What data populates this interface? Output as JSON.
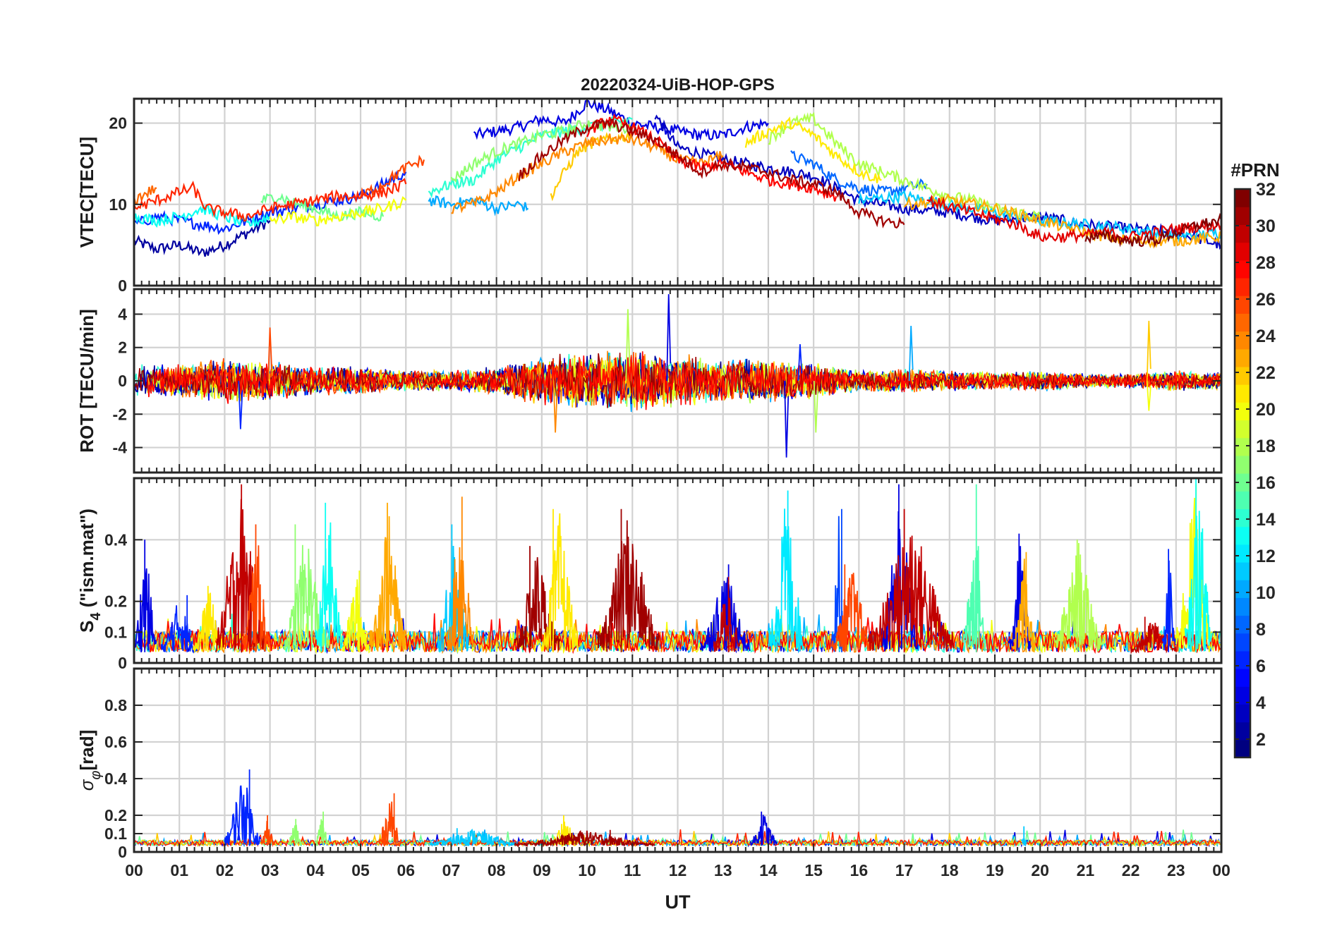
{
  "chart_data": [
    {
      "id": "vtec",
      "type": "line",
      "title": "20220324-UiB-HOP-GPS",
      "ylabel": "VTEC[TECU]",
      "ylim": [
        0,
        23
      ],
      "yticks": [
        0,
        10,
        20
      ],
      "xlim": [
        0,
        24
      ],
      "grid": true,
      "series": [
        {
          "prn": 2,
          "x": [
            0.0,
            0.5,
            1.0,
            1.5,
            2.0,
            2.5,
            3.0
          ],
          "y": [
            5.5,
            4.5,
            5.0,
            4.0,
            5.0,
            6.5,
            8.0
          ]
        },
        {
          "prn": 4,
          "x": [
            7.5,
            8.0,
            8.5,
            9.0,
            9.5,
            10.0,
            10.5,
            11.0,
            11.5,
            12.0,
            12.5,
            13.0,
            13.5,
            14.0
          ],
          "y": [
            18.5,
            19.0,
            19.5,
            20.5,
            20.0,
            22.5,
            21.5,
            20.0,
            19.5,
            19.0,
            18.5,
            18.5,
            19.5,
            20.0
          ]
        },
        {
          "prn": 3,
          "x": [
            11.5,
            12.0,
            13.0,
            14.0,
            15.0,
            16.0,
            17.0,
            18.0,
            19.0,
            20.0,
            21.0,
            22.0,
            23.0,
            24.0
          ],
          "y": [
            21.0,
            17.0,
            15.5,
            14.5,
            13.5,
            10.5,
            9.5,
            9.0,
            8.0,
            8.5,
            7.5,
            7.0,
            6.5,
            5.0
          ]
        },
        {
          "prn": 6,
          "x": [
            0.0,
            0.5,
            1.0,
            1.5,
            2.0,
            2.5,
            3.0,
            3.5,
            4.0,
            4.5,
            5.0,
            5.5,
            6.0
          ],
          "y": [
            7.5,
            8.5,
            8.0,
            7.5,
            7.0,
            8.0,
            9.0,
            9.5,
            10.0,
            10.5,
            11.0,
            12.5,
            14.0
          ]
        },
        {
          "prn": 8,
          "x": [
            14.5,
            15.0,
            15.5,
            16.0,
            16.5,
            17.0,
            17.5
          ],
          "y": [
            16.0,
            15.0,
            13.0,
            12.0,
            11.5,
            12.0,
            12.5
          ]
        },
        {
          "prn": 10,
          "x": [
            6.5,
            7.0,
            7.5,
            8.0,
            8.5,
            8.7
          ],
          "y": [
            10.5,
            10.0,
            10.5,
            9.5,
            10.0,
            9.5
          ]
        },
        {
          "prn": 11,
          "x": [
            16.0,
            17.0,
            18.0,
            19.0,
            20.0,
            21.0,
            22.0,
            23.0,
            24.0
          ],
          "y": [
            10.5,
            11.0,
            10.0,
            9.0,
            8.0,
            7.5,
            7.0,
            6.0,
            6.5
          ]
        },
        {
          "prn": 13,
          "x": [
            0.0,
            0.5,
            1.0,
            1.5,
            2.0,
            2.5,
            3.0
          ],
          "y": [
            8.5,
            8.0,
            8.5,
            9.5,
            8.5,
            7.5,
            8.5
          ]
        },
        {
          "prn": 14,
          "x": [
            6.5,
            7.0,
            7.5,
            8.0,
            8.5,
            9.0,
            9.5,
            10.0,
            10.5,
            11.0
          ],
          "y": [
            11.5,
            12.5,
            13.0,
            15.5,
            17.0,
            18.5,
            19.0,
            19.5,
            20.0,
            20.5
          ]
        },
        {
          "prn": 16,
          "x": [
            2.8,
            3.2,
            3.6,
            4.0,
            4.5,
            5.0,
            5.5
          ],
          "y": [
            10.5,
            11.0,
            10.0,
            9.5,
            8.5,
            9.0,
            8.5
          ]
        },
        {
          "prn": 17,
          "x": [
            7.0,
            7.5,
            8.0,
            8.5,
            9.0,
            9.5,
            10.0,
            10.5,
            11.0
          ],
          "y": [
            13.0,
            15.0,
            16.5,
            17.5,
            18.5,
            19.0,
            20.0,
            19.5,
            19.5
          ]
        },
        {
          "prn": 18,
          "x": [
            14.0,
            14.5,
            15.0,
            15.5,
            16.0,
            16.5,
            17.0,
            17.5,
            18.0,
            18.5,
            19.0,
            19.5,
            20.0
          ],
          "y": [
            18.0,
            20.0,
            20.5,
            17.5,
            15.0,
            14.0,
            13.0,
            12.0,
            11.0,
            10.5,
            9.5,
            9.0,
            8.5
          ]
        },
        {
          "prn": 20,
          "x": [
            3.0,
            3.5,
            4.0,
            4.5,
            5.0,
            5.5,
            6.0
          ],
          "y": [
            8.0,
            8.5,
            8.0,
            8.5,
            9.0,
            9.5,
            10.5
          ]
        },
        {
          "prn": 21,
          "x": [
            13.5,
            14.0,
            14.5,
            15.0,
            15.5,
            16.0,
            16.5
          ],
          "y": [
            17.5,
            19.0,
            20.0,
            18.5,
            16.0,
            14.0,
            13.0
          ]
        },
        {
          "prn": 22,
          "x": [
            9.2,
            9.5,
            9.8,
            10.1,
            10.5,
            11.0
          ],
          "y": [
            11.0,
            14.0,
            16.5,
            17.5,
            18.0,
            18.5
          ]
        },
        {
          "prn": 23,
          "x": [
            17.0,
            18.0,
            19.0,
            20.0,
            21.0,
            22.0,
            23.0,
            24.0
          ],
          "y": [
            10.0,
            10.5,
            9.5,
            8.0,
            6.5,
            5.5,
            5.5,
            6.0
          ]
        },
        {
          "prn": 24,
          "x": [
            7.0,
            7.5,
            8.0,
            8.5,
            9.0,
            9.5,
            10.0,
            10.5,
            11.0,
            11.5,
            12.0,
            12.5,
            13.0
          ],
          "y": [
            9.5,
            10.0,
            11.5,
            13.5,
            15.0,
            16.5,
            17.5,
            18.0,
            18.0,
            17.0,
            15.5,
            15.0,
            16.0
          ]
        },
        {
          "prn": 25,
          "x": [
            0.0,
            0.3,
            0.5
          ],
          "y": [
            10.5,
            11.5,
            12.0
          ]
        },
        {
          "prn": 26,
          "x": [
            5.0,
            5.5,
            6.0,
            6.4
          ],
          "y": [
            11.0,
            12.5,
            14.5,
            15.5
          ]
        },
        {
          "prn": 27,
          "x": [
            0.0,
            0.5,
            1.0,
            1.3,
            1.6,
            2.0,
            2.5,
            3.0,
            3.5,
            4.0,
            4.5,
            5.0,
            5.5,
            6.0
          ],
          "y": [
            9.5,
            10.5,
            11.5,
            12.0,
            9.5,
            9.0,
            8.5,
            9.5,
            10.0,
            10.5,
            11.0,
            11.0,
            11.5,
            12.5
          ]
        },
        {
          "prn": 28,
          "x": [
            10.0,
            10.5,
            11.0,
            11.5,
            12.0,
            12.5,
            13.0,
            13.5,
            14.0,
            14.5,
            15.0,
            15.5
          ],
          "y": [
            19.0,
            20.5,
            19.5,
            18.0,
            15.5,
            14.5,
            15.0,
            14.0,
            13.0,
            12.5,
            12.0,
            11.0
          ]
        },
        {
          "prn": 29,
          "x": [
            17.5,
            18.5,
            19.5,
            20.0,
            20.5,
            21.5,
            22.0,
            23.0,
            24.0
          ],
          "y": [
            10.5,
            9.0,
            7.5,
            6.0,
            6.0,
            6.5,
            6.0,
            7.0,
            7.5
          ]
        },
        {
          "prn": 31,
          "x": [
            8.5,
            9.0,
            9.5,
            10.0,
            10.5,
            11.0,
            11.5,
            12.0,
            12.5,
            13.0,
            13.5,
            14.0,
            14.5,
            15.0,
            15.5,
            16.0,
            16.5,
            17.0
          ],
          "y": [
            13.5,
            16.0,
            18.0,
            19.5,
            20.0,
            19.0,
            18.0,
            16.0,
            14.0,
            15.0,
            14.5,
            14.0,
            13.0,
            12.5,
            11.5,
            9.0,
            8.0,
            7.5
          ]
        },
        {
          "prn": 32,
          "x": [
            21.0,
            21.5,
            22.0,
            22.5,
            23.0,
            23.5,
            24.0
          ],
          "y": [
            6.0,
            6.0,
            5.5,
            5.5,
            6.5,
            7.5,
            8.0
          ]
        }
      ]
    },
    {
      "id": "rot",
      "type": "line",
      "ylabel": "ROT [TECU/min]",
      "ylim": [
        -5.5,
        5.5
      ],
      "yticks": [
        -4,
        -2,
        0,
        2,
        4
      ],
      "xlim": [
        0,
        24
      ],
      "grid": true,
      "envelope": [
        [
          0,
          1.0
        ],
        [
          1,
          1.0
        ],
        [
          2,
          1.3
        ],
        [
          3,
          1.1
        ],
        [
          4,
          0.8
        ],
        [
          5,
          0.8
        ],
        [
          6,
          0.6
        ],
        [
          7,
          0.6
        ],
        [
          8,
          0.8
        ],
        [
          9,
          1.4
        ],
        [
          10,
          1.6
        ],
        [
          11,
          1.8
        ],
        [
          12,
          1.6
        ],
        [
          13,
          1.2
        ],
        [
          14,
          1.3
        ],
        [
          15,
          1.0
        ],
        [
          16,
          0.6
        ],
        [
          17,
          0.7
        ],
        [
          18,
          0.6
        ],
        [
          19,
          0.5
        ],
        [
          20,
          0.6
        ],
        [
          21,
          0.4
        ],
        [
          22,
          0.4
        ],
        [
          23,
          0.6
        ],
        [
          24,
          0.5
        ]
      ],
      "prn_order": [
        14,
        22,
        10,
        4,
        18,
        24,
        2,
        20,
        26,
        31,
        28
      ],
      "spikes": [
        {
          "prn": 6,
          "x": 2.35,
          "y": -2.9
        },
        {
          "prn": 26,
          "x": 3.0,
          "y": 3.2
        },
        {
          "prn": 24,
          "x": 9.3,
          "y": -3.1
        },
        {
          "prn": 18,
          "x": 10.9,
          "y": 4.3
        },
        {
          "prn": 4,
          "x": 11.8,
          "y": 5.2
        },
        {
          "prn": 4,
          "x": 14.4,
          "y": -4.6
        },
        {
          "prn": 6,
          "x": 14.7,
          "y": 2.2
        },
        {
          "prn": 18,
          "x": 15.05,
          "y": -3.1
        },
        {
          "prn": 10,
          "x": 17.15,
          "y": 3.3
        },
        {
          "prn": 22,
          "x": 22.4,
          "y": 3.6
        },
        {
          "prn": 20,
          "x": 22.4,
          "y": -1.8
        }
      ]
    },
    {
      "id": "s4",
      "type": "line",
      "ylabel": "S",
      "ylabel_sub": "4",
      "ylabel_rest": " (\"ism.mat\")",
      "ylim": [
        0,
        0.6
      ],
      "yticks": [
        0,
        0.1,
        0.2,
        0.4
      ],
      "xlim": [
        0,
        24
      ],
      "grid": true,
      "bursts": [
        {
          "prn": 4,
          "x0": 0.0,
          "x1": 0.5,
          "peak": 0.4
        },
        {
          "prn": 6,
          "x0": 0.6,
          "x1": 1.4,
          "peak": 0.22
        },
        {
          "prn": 21,
          "x0": 1.3,
          "x1": 2.0,
          "peak": 0.25
        },
        {
          "prn": 30,
          "x0": 1.8,
          "x1": 2.9,
          "peak": 0.58
        },
        {
          "prn": 26,
          "x0": 2.4,
          "x1": 3.0,
          "peak": 0.45
        },
        {
          "prn": 17,
          "x0": 3.3,
          "x1": 4.3,
          "peak": 0.45
        },
        {
          "prn": 13,
          "x0": 4.0,
          "x1": 4.6,
          "peak": 0.52
        },
        {
          "prn": 20,
          "x0": 4.6,
          "x1": 5.2,
          "peak": 0.3
        },
        {
          "prn": 23,
          "x0": 5.2,
          "x1": 6.0,
          "peak": 0.52
        },
        {
          "prn": 11,
          "x0": 6.7,
          "x1": 7.4,
          "peak": 0.45
        },
        {
          "prn": 24,
          "x0": 6.9,
          "x1": 7.5,
          "peak": 0.54
        },
        {
          "prn": 31,
          "x0": 8.4,
          "x1": 9.4,
          "peak": 0.38
        },
        {
          "prn": 21,
          "x0": 9.0,
          "x1": 9.8,
          "peak": 0.5
        },
        {
          "prn": 31,
          "x0": 10.2,
          "x1": 11.6,
          "peak": 0.5
        },
        {
          "prn": 4,
          "x0": 12.5,
          "x1": 13.6,
          "peak": 0.32
        },
        {
          "prn": 30,
          "x0": 12.8,
          "x1": 13.4,
          "peak": 0.28
        },
        {
          "prn": 12,
          "x0": 14.0,
          "x1": 14.8,
          "peak": 0.56
        },
        {
          "prn": 7,
          "x0": 15.4,
          "x1": 15.7,
          "peak": 0.5
        },
        {
          "prn": 26,
          "x0": 15.4,
          "x1": 16.3,
          "peak": 0.32
        },
        {
          "prn": 4,
          "x0": 16.5,
          "x1": 17.3,
          "peak": 0.58
        },
        {
          "prn": 30,
          "x0": 16.2,
          "x1": 18.1,
          "peak": 0.5
        },
        {
          "prn": 15,
          "x0": 18.3,
          "x1": 18.8,
          "peak": 0.58
        },
        {
          "prn": 4,
          "x0": 19.3,
          "x1": 19.8,
          "peak": 0.42
        },
        {
          "prn": 23,
          "x0": 19.4,
          "x1": 19.9,
          "peak": 0.36
        },
        {
          "prn": 18,
          "x0": 20.3,
          "x1": 21.4,
          "peak": 0.4
        },
        {
          "prn": 30,
          "x0": 22.0,
          "x1": 23.0,
          "peak": 0.15
        },
        {
          "prn": 6,
          "x0": 22.7,
          "x1": 23.0,
          "peak": 0.37
        },
        {
          "prn": 20,
          "x0": 23.0,
          "x1": 23.8,
          "peak": 0.58
        },
        {
          "prn": 13,
          "x0": 23.2,
          "x1": 23.8,
          "peak": 0.6
        }
      ],
      "floor_prns": [
        4,
        10,
        14,
        20,
        24,
        28
      ]
    },
    {
      "id": "sigphi",
      "type": "line",
      "ylabel": "σ",
      "ylabel_sub": "φ",
      "ylabel_rest": "[rad]",
      "ylim": [
        0,
        1.0
      ],
      "yticks": [
        0,
        0.1,
        0.2,
        0.4,
        0.6,
        0.8
      ],
      "xlim": [
        0,
        24
      ],
      "grid": true,
      "bursts": [
        {
          "prn": 6,
          "x0": 2.0,
          "x1": 2.8,
          "peak": 0.45
        },
        {
          "prn": 26,
          "x0": 2.8,
          "x1": 3.1,
          "peak": 0.2
        },
        {
          "prn": 17,
          "x0": 3.4,
          "x1": 3.7,
          "peak": 0.18
        },
        {
          "prn": 17,
          "x0": 4.0,
          "x1": 4.3,
          "peak": 0.22
        },
        {
          "prn": 26,
          "x0": 5.4,
          "x1": 5.9,
          "peak": 0.32
        },
        {
          "prn": 11,
          "x0": 6.5,
          "x1": 8.5,
          "peak": 0.13
        },
        {
          "prn": 21,
          "x0": 9.2,
          "x1": 9.8,
          "peak": 0.2
        },
        {
          "prn": 31,
          "x0": 8.4,
          "x1": 11.5,
          "peak": 0.12
        },
        {
          "prn": 4,
          "x0": 13.6,
          "x1": 14.2,
          "peak": 0.22
        },
        {
          "prn": 11,
          "x0": 19.6,
          "x1": 19.7,
          "peak": 0.14
        }
      ],
      "floor_prns": [
        4,
        10,
        16,
        22,
        27
      ]
    }
  ],
  "xaxis": {
    "label": "UT",
    "tick_labels": [
      "00",
      "01",
      "02",
      "03",
      "04",
      "05",
      "06",
      "07",
      "08",
      "09",
      "10",
      "11",
      "12",
      "13",
      "14",
      "15",
      "16",
      "17",
      "18",
      "19",
      "20",
      "21",
      "22",
      "23",
      "00"
    ]
  },
  "colorbar": {
    "title": "#PRN",
    "colormap": "jet",
    "range": [
      1,
      32
    ],
    "tick_labels": [
      "2",
      "4",
      "6",
      "8",
      "10",
      "12",
      "14",
      "16",
      "18",
      "20",
      "22",
      "24",
      "26",
      "28",
      "30",
      "32"
    ]
  }
}
